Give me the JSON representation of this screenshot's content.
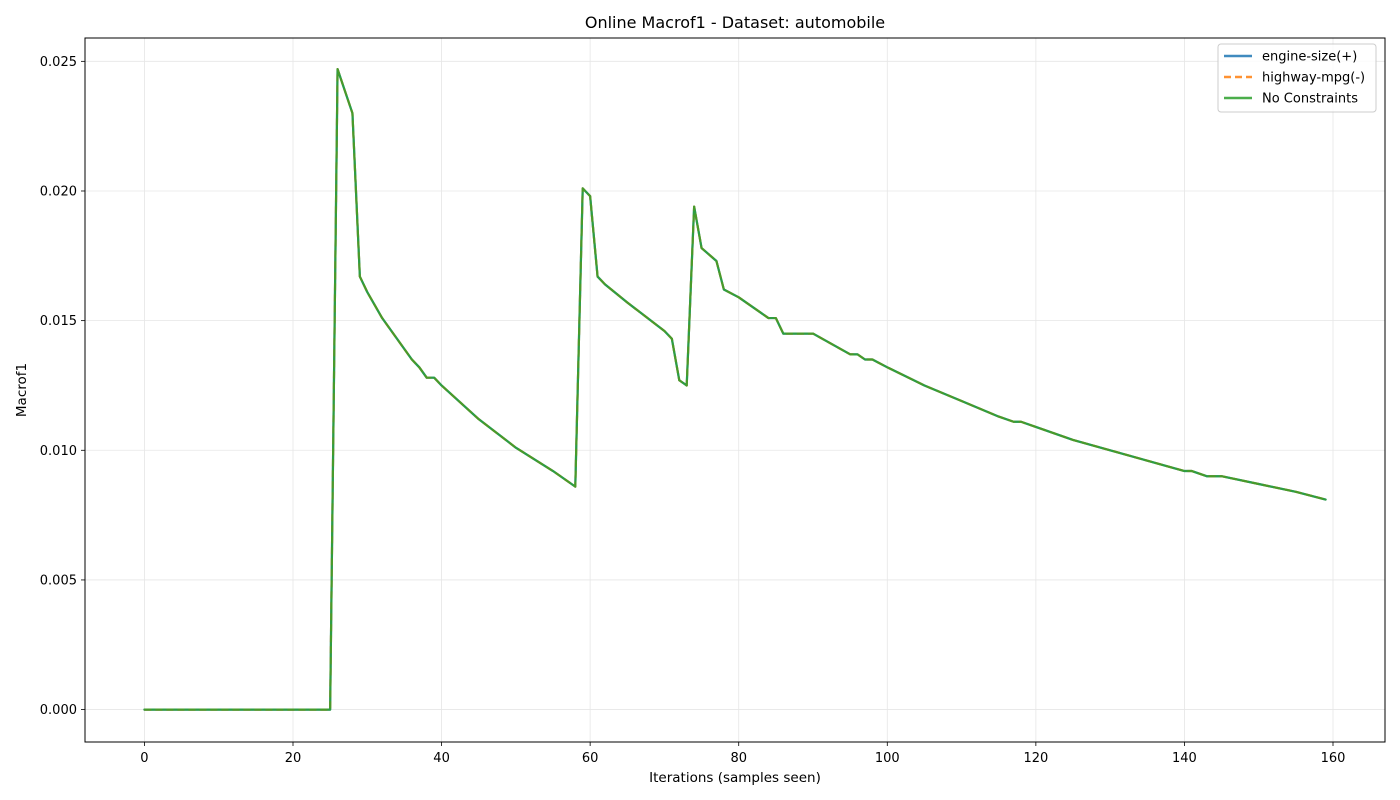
{
  "chart_data": {
    "type": "line",
    "title": "Online Macrof1 - Dataset: automobile",
    "xlabel": "Iterations (samples seen)",
    "ylabel": "Macrof1",
    "xlim": [
      -8,
      167
    ],
    "ylim": [
      -0.00125,
      0.0259
    ],
    "xticks": [
      0,
      20,
      40,
      60,
      80,
      100,
      120,
      140,
      160
    ],
    "yticks": [
      0.0,
      0.005,
      0.01,
      0.015,
      0.02,
      0.025
    ],
    "ytick_labels": [
      "0.000",
      "0.005",
      "0.010",
      "0.015",
      "0.020",
      "0.025"
    ],
    "grid": true,
    "legend_position": "top-right",
    "colors": {
      "engine-size(+)": "#1f77b4",
      "highway-mpg(-)": "#ff7f0e",
      "No Constraints": "#2ca02c"
    },
    "series": [
      {
        "name": "engine-size(+)",
        "style": "solid"
      },
      {
        "name": "highway-mpg(-)",
        "style": "dashed"
      },
      {
        "name": "No Constraints",
        "style": "solid"
      }
    ],
    "x": [
      0,
      25,
      26,
      28,
      29,
      30,
      31,
      32,
      33,
      34,
      35,
      36,
      37,
      38,
      39,
      40,
      45,
      50,
      55,
      58,
      59,
      60,
      61,
      62,
      65,
      70,
      71,
      72,
      73,
      74,
      75,
      77,
      78,
      80,
      84,
      85,
      86,
      90,
      95,
      96,
      97,
      98,
      100,
      105,
      110,
      115,
      117,
      118,
      120,
      125,
      130,
      135,
      140,
      141,
      143,
      144,
      145,
      150,
      155,
      159
    ],
    "y": [
      0.0,
      0.0,
      0.0247,
      0.023,
      0.0167,
      0.0161,
      0.0156,
      0.0151,
      0.0147,
      0.0143,
      0.0139,
      0.0135,
      0.0132,
      0.0128,
      0.0128,
      0.0125,
      0.0112,
      0.0101,
      0.0092,
      0.0086,
      0.0201,
      0.0198,
      0.0167,
      0.0164,
      0.0157,
      0.0146,
      0.0143,
      0.0127,
      0.0125,
      0.0194,
      0.0178,
      0.0173,
      0.0162,
      0.0159,
      0.0151,
      0.0151,
      0.0145,
      0.0145,
      0.0137,
      0.0137,
      0.0135,
      0.0135,
      0.0132,
      0.0125,
      0.0119,
      0.0113,
      0.0111,
      0.0111,
      0.0109,
      0.0104,
      0.01,
      0.0096,
      0.0092,
      0.0092,
      0.009,
      0.009,
      0.009,
      0.0087,
      0.0084,
      0.0081
    ]
  }
}
